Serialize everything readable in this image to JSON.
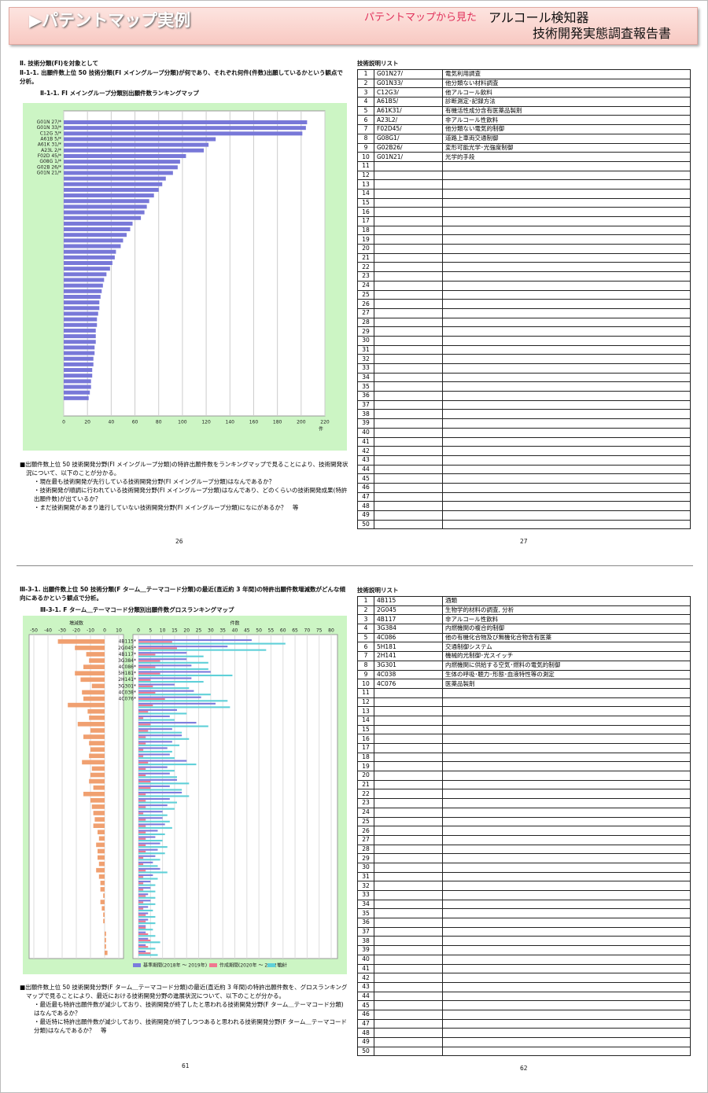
{
  "header": {
    "title": "パテントマップ実例",
    "subtitle": "パテントマップから見た",
    "product": "アルコール検知器",
    "report": "技術開発実態調査報告書"
  },
  "page26": {
    "heading": "Ⅱ. 技術分類(FI)を対象として",
    "section": "Ⅱ-1-1. 出願件数上位 50 技術分類(FI メイングループ分類)が何であり、それぞれ何件(件数)出願しているかという観点で分析。",
    "chart_title": "Ⅱ-1-1. FI メイングループ分類別出願件数ランキングマップ",
    "notes": [
      "■出願件数上位 50 技術開発分野(FI メイングループ分類)の特許出願件数をランキングマップで見ることにより、技術開発状況について、以下のことが分かる。",
      "・現在最も技術開発が先行している技術開発分野(FI メイングループ分類)はなんであるか？",
      "・技術開発が順調に行われている技術開発分野(FI メイングループ分類)はなんであり、どのくらいの技術開発成果(特許出願件数)が出ているか？",
      "・まだ技術開発があまり進行していない技術開発分野(FI メイングループ分類)になにがあるか？　等"
    ],
    "page_no": 26
  },
  "page27": {
    "table_title": "技術説明リスト",
    "page_no": 27,
    "rows": [
      [
        1,
        "G01N27/",
        "電気利用調査"
      ],
      [
        2,
        "G01N33/",
        "他分類ない材料調査"
      ],
      [
        3,
        "C12G3/",
        "他アルコール飲料"
      ],
      [
        4,
        "A61B5/",
        "診断測定･記録方法"
      ],
      [
        5,
        "A61K31/",
        "有機活性成分含有医薬品製剤"
      ],
      [
        6,
        "A23L2/",
        "非アルコール性飲料"
      ],
      [
        7,
        "F02D45/",
        "他分類ない電気的制御"
      ],
      [
        8,
        "G08G1/",
        "道路上車両交通制御"
      ],
      [
        9,
        "G02B26/",
        "変形可能光学･光強度制御"
      ],
      [
        10,
        "G01N21/",
        "光学的手段"
      ],
      [
        11
      ],
      [
        12
      ],
      [
        13
      ],
      [
        14
      ],
      [
        15
      ],
      [
        16
      ],
      [
        17
      ],
      [
        18
      ],
      [
        19
      ],
      [
        20
      ],
      [
        21
      ],
      [
        22
      ],
      [
        23
      ],
      [
        24
      ],
      [
        25
      ],
      [
        26
      ],
      [
        27
      ],
      [
        28
      ],
      [
        29
      ],
      [
        30
      ],
      [
        31
      ],
      [
        32
      ],
      [
        33
      ],
      [
        34
      ],
      [
        35
      ],
      [
        36
      ],
      [
        37
      ],
      [
        38
      ],
      [
        39
      ],
      [
        40
      ],
      [
        41
      ],
      [
        42
      ],
      [
        43
      ],
      [
        44
      ],
      [
        45
      ],
      [
        46
      ],
      [
        47
      ],
      [
        48
      ],
      [
        49
      ],
      [
        50
      ]
    ]
  },
  "page61": {
    "section": "Ⅲ-3-1. 出願件数上位 50 技術分類(F ターム＿テーマコード分類)の最近(直近約 3 年間)の特許出願件数増減数がどんな傾向にあるかという観点で分析。",
    "chart_title": "Ⅲ-3-1. F ターム＿テーマコード分類別出願件数グロスランキングマップ",
    "notes": [
      "■出願件数上位 50 技術開発分野(F ターム＿テーマコード分類)の最近(直近約 3 年間)の特許出願件数を、グロスランキングマップで見ることにより、最近における技術開発分野の進展状況について、以下のことが分かる。",
      "・最近最も特許出願件数が減少しており、技術開発が終了したと思われる技術開発分野(F ターム＿テーマコード分類)はなんであるか？",
      "・最近特に特許出願件数が減少しており、技術開発が終了しつつあると思われる技術開発分野(F ターム＿テーマコード分類)はなんであるか？　等"
    ],
    "page_no": 61
  },
  "page62": {
    "table_title": "技術説明リスト",
    "page_no": 62,
    "rows": [
      [
        1,
        "4B115",
        "酒類"
      ],
      [
        2,
        "2G045",
        "生物学的材料の調査, 分析"
      ],
      [
        3,
        "4B117",
        "非アルコール性飲料"
      ],
      [
        4,
        "3G384",
        "内燃機関の複合的制御"
      ],
      [
        5,
        "4C086",
        "他の有機化合物及び無機化合物含有医薬"
      ],
      [
        6,
        "5H181",
        "交通制御システム"
      ],
      [
        7,
        "2H141",
        "機械的光制御･光スイッチ"
      ],
      [
        8,
        "3G301",
        "内燃機関に供給する空気･燃料の電気的制御"
      ],
      [
        9,
        "4C038",
        "生体の呼吸･聴力･形態･血液特性等の測定"
      ],
      [
        10,
        "4C076",
        "医薬品製剤"
      ],
      [
        11
      ],
      [
        12
      ],
      [
        13
      ],
      [
        14
      ],
      [
        15
      ],
      [
        16
      ],
      [
        17
      ],
      [
        18
      ],
      [
        19
      ],
      [
        20
      ],
      [
        21
      ],
      [
        22
      ],
      [
        23
      ],
      [
        24
      ],
      [
        25
      ],
      [
        26
      ],
      [
        27
      ],
      [
        28
      ],
      [
        29
      ],
      [
        30
      ],
      [
        31
      ],
      [
        32
      ],
      [
        33
      ],
      [
        34
      ],
      [
        35
      ],
      [
        36
      ],
      [
        37
      ],
      [
        38
      ],
      [
        39
      ],
      [
        40
      ],
      [
        41
      ],
      [
        42
      ],
      [
        43
      ],
      [
        44
      ],
      [
        45
      ],
      [
        46
      ],
      [
        47
      ],
      [
        48
      ],
      [
        49
      ],
      [
        50
      ]
    ]
  },
  "chart_data": [
    {
      "type": "hbar",
      "color": "#7878d8",
      "xlabel": "件",
      "xlim": [
        0,
        220
      ],
      "xticks": [
        0,
        20,
        40,
        60,
        80,
        100,
        120,
        140,
        160,
        180,
        200,
        220
      ],
      "categories": [
        "G01N 27/*",
        "G01N 33/*",
        "C12G 3/*",
        "A61B 5/*",
        "A61K 31/*",
        "A23L 2/*",
        "F02D 45/*",
        "G08G 1/*",
        "G02B 26/*",
        "G01N 21/*",
        null,
        null,
        null,
        null,
        null,
        null,
        null,
        null,
        null,
        null,
        null,
        null,
        null,
        null,
        null,
        null,
        null,
        null,
        null,
        null,
        null,
        null,
        null,
        null,
        null,
        null,
        null,
        null,
        null,
        null,
        null,
        null,
        null,
        null,
        null,
        null,
        null,
        null,
        null,
        null
      ],
      "values": [
        205,
        204,
        201,
        128,
        122,
        118,
        103,
        98,
        96,
        92,
        86,
        83,
        80,
        76,
        72,
        70,
        68,
        65,
        58,
        56,
        53,
        50,
        48,
        44,
        43,
        41,
        39,
        36,
        34,
        33,
        32,
        31,
        30,
        30,
        29,
        28,
        28,
        27,
        27,
        27,
        26,
        26,
        25,
        25,
        24,
        24,
        23,
        23,
        22,
        21
      ]
    },
    {
      "type": "gross",
      "xlabel": "件数",
      "xlim": [
        0,
        80
      ],
      "xticks": [
        0,
        5,
        10,
        15,
        20,
        25,
        30,
        35,
        40,
        45,
        50,
        55,
        60,
        65,
        70,
        75,
        80
      ],
      "categories": [
        "4B115*",
        "2G045*",
        "4B117*",
        "3G384*",
        "4C086*",
        "5H181*",
        "2H141*",
        "3G301*",
        "4C038*",
        "4C076*",
        null,
        null,
        null,
        null,
        null,
        null,
        null,
        null,
        null,
        null,
        null,
        null,
        null,
        null,
        null,
        null,
        null,
        null,
        null,
        null,
        null,
        null,
        null,
        null,
        null,
        null,
        null,
        null,
        null,
        null,
        null,
        null,
        null,
        null,
        null,
        null,
        null,
        null,
        null,
        null
      ],
      "diff": {
        "label": "増減数",
        "color": "#f0a070",
        "xlim": [
          -50,
          10
        ],
        "xticks": [
          -50,
          -40,
          -30,
          -20,
          -10,
          0,
          10
        ],
        "values": [
          -33,
          -21,
          -13,
          -11,
          -15,
          -21,
          -17,
          -9,
          -16,
          -15,
          -26,
          -12,
          -11,
          -19,
          -10,
          -15,
          -11,
          -10,
          -11,
          -16,
          -9,
          -10,
          -11,
          -8,
          -15,
          -10,
          -9,
          -8,
          -7,
          -8,
          -5,
          -4,
          -6,
          -5,
          -5,
          -4,
          -6,
          -4,
          -3,
          -3,
          -1,
          -3,
          -2,
          -1,
          -1,
          0,
          1,
          1,
          1,
          2
        ]
      },
      "series": [
        {
          "name": "基準期間(2018年 ～ 2019年)",
          "color": "#7b7bdc",
          "values": [
            47,
            37,
            20,
            20,
            22,
            30,
            22,
            15,
            23,
            26,
            32,
            16,
            13,
            24,
            14,
            18,
            14,
            12,
            13,
            20,
            12,
            13,
            16,
            13,
            18,
            13,
            12,
            10,
            10,
            11,
            8,
            7,
            9,
            8,
            7,
            6,
            9,
            6,
            5,
            5,
            4,
            5,
            4,
            4,
            4,
            3,
            3,
            4,
            3,
            3
          ]
        },
        {
          "name": "作成期間(2020年 ～ 2022年)",
          "color": "#f07890",
          "values": [
            14,
            16,
            7,
            9,
            7,
            9,
            5,
            6,
            7,
            11,
            6,
            4,
            2,
            5,
            4,
            3,
            3,
            2,
            2,
            4,
            3,
            3,
            5,
            5,
            3,
            3,
            3,
            2,
            3,
            3,
            3,
            3,
            3,
            3,
            2,
            2,
            3,
            2,
            2,
            2,
            3,
            2,
            2,
            3,
            3,
            3,
            4,
            5,
            4,
            5
          ]
        },
        {
          "name": "合計",
          "color": "#5fd0d8",
          "values": [
            61,
            53,
            27,
            29,
            29,
            39,
            27,
            21,
            30,
            37,
            38,
            20,
            15,
            29,
            18,
            21,
            17,
            14,
            15,
            24,
            15,
            16,
            21,
            18,
            21,
            16,
            15,
            12,
            13,
            14,
            11,
            10,
            12,
            11,
            9,
            8,
            12,
            8,
            7,
            7,
            7,
            7,
            6,
            7,
            7,
            6,
            7,
            9,
            7,
            8
          ]
        }
      ]
    }
  ]
}
